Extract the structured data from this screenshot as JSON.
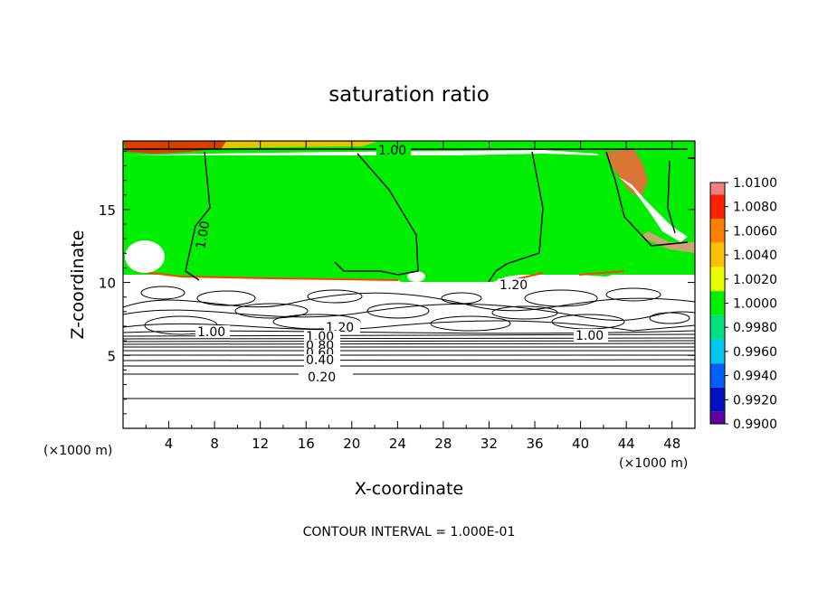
{
  "chart_data": {
    "type": "heatmap",
    "title": "saturation ratio",
    "xlabel": "X-coordinate",
    "ylabel": "Z-coordinate",
    "x_unit_label": "(×1000 m)",
    "x_unit_label_right": "(×1000 m)",
    "xlim": [
      0,
      50
    ],
    "ylim": [
      0,
      19.7
    ],
    "x_ticks": [
      4,
      8,
      12,
      16,
      20,
      24,
      28,
      32,
      36,
      40,
      44,
      48
    ],
    "x_tick_labels": [
      "4",
      "8",
      "12",
      "16",
      "20",
      "24",
      "28",
      "32",
      "36",
      "40",
      "44",
      "48"
    ],
    "y_ticks": [
      5,
      10,
      15
    ],
    "y_tick_labels": [
      "5",
      "10",
      "15"
    ],
    "colorbar": {
      "levels": [
        "1.0100",
        "1.0080",
        "1.0060",
        "1.0040",
        "1.0020",
        "1.0000",
        "0.9980",
        "0.9960",
        "0.9940",
        "0.9920",
        "0.9900"
      ],
      "colors": [
        "#f08080",
        "#ff2000",
        "#ff8000",
        "#ffc000",
        "#e8ff00",
        "#00f000",
        "#00e080",
        "#00c8f0",
        "#0060ff",
        "#0010c0",
        "#6000a0"
      ]
    },
    "contour_labels": [
      "1.00",
      "1.00",
      "1.00",
      "1.20",
      "1.20",
      "1.00",
      "1.00",
      "0.80",
      "0.60",
      "0.40",
      "0.20"
    ],
    "contour_interval_text": "CONTOUR INTERVAL = 1.000E-01"
  }
}
